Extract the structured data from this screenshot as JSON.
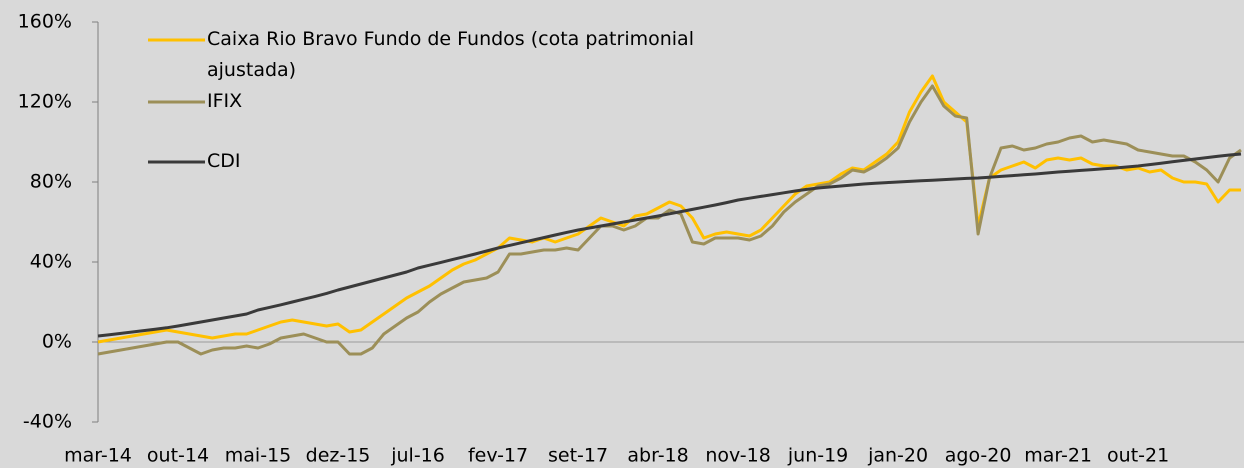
{
  "chart_data": {
    "type": "line",
    "categories": [
      "mar-14",
      null,
      null,
      null,
      null,
      null,
      null,
      "out-14",
      null,
      null,
      null,
      null,
      null,
      null,
      "mai-15",
      null,
      null,
      null,
      null,
      null,
      null,
      "dez-15",
      null,
      null,
      null,
      null,
      null,
      null,
      "jul-16",
      null,
      null,
      null,
      null,
      null,
      null,
      "fev-17",
      null,
      null,
      null,
      null,
      null,
      null,
      "set-17",
      null,
      null,
      null,
      null,
      null,
      null,
      "abr-18",
      null,
      null,
      null,
      null,
      null,
      null,
      "nov-18",
      null,
      null,
      null,
      null,
      null,
      null,
      "jun-19",
      null,
      null,
      null,
      null,
      null,
      null,
      "jan-20",
      null,
      null,
      null,
      null,
      null,
      null,
      "ago-20",
      null,
      null,
      null,
      null,
      null,
      null,
      "mar-21",
      null,
      null,
      null,
      null,
      null,
      null,
      "out-21",
      null,
      null,
      null,
      null,
      null,
      null,
      null,
      null,
      null
    ],
    "series": [
      {
        "name": "Caixa Rio Bravo Fundo de Fundos (cota patrimonial ajustada)",
        "color": "#ffc000",
        "values": [
          0,
          1,
          2,
          3,
          4,
          5,
          6,
          5,
          4,
          3,
          2,
          3,
          4,
          4,
          6,
          8,
          10,
          11,
          10,
          9,
          8,
          9,
          5,
          6,
          10,
          14,
          18,
          22,
          25,
          28,
          32,
          36,
          39,
          41,
          44,
          47,
          52,
          51,
          50,
          52,
          50,
          52,
          54,
          58,
          62,
          60,
          58,
          63,
          64,
          67,
          70,
          68,
          62,
          52,
          54,
          55,
          54,
          53,
          56,
          62,
          68,
          74,
          78,
          79,
          80,
          84,
          87,
          86,
          90,
          94,
          100,
          115,
          125,
          133,
          120,
          115,
          110,
          58,
          82,
          86,
          88,
          90,
          87,
          91,
          92,
          91,
          92,
          89,
          88,
          88,
          86,
          87,
          85,
          86,
          82,
          80,
          80,
          79,
          70,
          76,
          76
        ]
      },
      {
        "name": "IFIX",
        "color": "#9c8f58",
        "values": [
          -6,
          -5,
          -4,
          -3,
          -2,
          -1,
          0,
          0,
          -3,
          -6,
          -4,
          -3,
          -3,
          -2,
          -3,
          -1,
          2,
          3,
          4,
          2,
          0,
          0,
          -6,
          -6,
          -3,
          4,
          8,
          12,
          15,
          20,
          24,
          27,
          30,
          31,
          32,
          35,
          44,
          44,
          45,
          46,
          46,
          47,
          46,
          52,
          58,
          58,
          56,
          58,
          62,
          62,
          66,
          64,
          50,
          49,
          52,
          52,
          52,
          51,
          53,
          58,
          65,
          70,
          74,
          78,
          79,
          82,
          86,
          85,
          88,
          92,
          97,
          110,
          120,
          128,
          118,
          113,
          112,
          54,
          82,
          97,
          98,
          96,
          97,
          99,
          100,
          102,
          103,
          100,
          101,
          100,
          99,
          96,
          95,
          94,
          93,
          93,
          90,
          86,
          80,
          92,
          96
        ]
      },
      {
        "name": "CDI",
        "color": "#3a3a3a",
        "values": [
          3,
          3.6,
          4.3,
          5,
          5.7,
          6.4,
          7.1,
          8,
          9,
          10,
          11,
          12,
          13,
          14,
          16,
          17.3,
          18.6,
          20,
          21.4,
          22.8,
          24.3,
          26,
          27.5,
          29,
          30.5,
          32,
          33.5,
          35,
          37,
          38.4,
          39.8,
          41.2,
          42.6,
          44,
          45.5,
          47,
          48.3,
          49.6,
          50.9,
          52.2,
          53.5,
          54.8,
          56,
          57,
          58,
          59,
          60,
          61,
          62,
          63,
          64.1,
          65.2,
          66.3,
          67.4,
          68.5,
          69.7,
          71,
          71.9,
          72.8,
          73.7,
          74.6,
          75.5,
          76.3,
          77,
          77.5,
          78,
          78.5,
          79,
          79.4,
          79.7,
          80,
          80.3,
          80.6,
          80.9,
          81.2,
          81.5,
          81.8,
          82,
          82.4,
          82.8,
          83.2,
          83.6,
          84,
          84.5,
          85,
          85.4,
          85.8,
          86.2,
          86.6,
          87,
          87.5,
          88,
          88.7,
          89.4,
          90.1,
          90.8,
          91.5,
          92.2,
          92.9,
          93.5,
          94
        ]
      }
    ],
    "ylim": [
      -40,
      160
    ],
    "yticks": [
      {
        "value": -40,
        "label": "-40%"
      },
      {
        "value": 0,
        "label": "0%"
      },
      {
        "value": 40,
        "label": "40%"
      },
      {
        "value": 80,
        "label": "80%"
      },
      {
        "value": 120,
        "label": "120%"
      },
      {
        "value": 160,
        "label": "160%"
      }
    ],
    "legend": "upper left"
  }
}
